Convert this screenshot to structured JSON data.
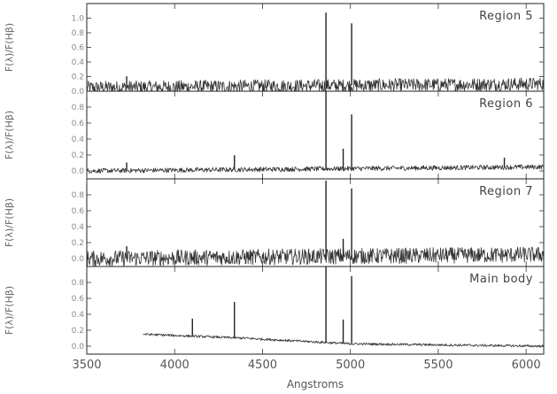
{
  "chart_data": {
    "type": "line",
    "xlabel": "Angstroms",
    "x_range": [
      3500,
      6100
    ],
    "x_ticks": [
      3500,
      4000,
      4500,
      5000,
      5500,
      6000
    ],
    "x_tick_labels": [
      "3500",
      "4000",
      "4500",
      "5000",
      "5500",
      "6000"
    ],
    "grid": false,
    "panels": [
      {
        "title": "Region 5",
        "ylabel": "F(λ)/F(Hβ)",
        "ylim": [
          0,
          1.2
        ],
        "y_ticks": [
          0.0,
          0.2,
          0.4,
          0.6,
          0.8,
          1.0
        ],
        "x_start": 3500,
        "x_end": 6100,
        "continuum": [
          [
            3500,
            0.05
          ],
          [
            6100,
            0.1
          ]
        ],
        "noise": 0.09,
        "lines": [
          [
            3727,
            0.15
          ],
          [
            4861,
            1.0
          ],
          [
            5007,
            0.85
          ]
        ]
      },
      {
        "title": "Region 6",
        "ylabel": "F(λ)/F(Hβ)",
        "ylim": [
          -0.1,
          1.0
        ],
        "y_ticks": [
          0.0,
          0.2,
          0.4,
          0.6,
          0.8
        ],
        "x_start": 3500,
        "x_end": 6100,
        "continuum": [
          [
            3500,
            0.0
          ],
          [
            6100,
            0.05
          ]
        ],
        "noise": 0.03,
        "lines": [
          [
            3727,
            0.1
          ],
          [
            4340,
            0.18
          ],
          [
            4861,
            1.0
          ],
          [
            4959,
            0.25
          ],
          [
            5007,
            0.68
          ],
          [
            5876,
            0.12
          ]
        ]
      },
      {
        "title": "Region 7",
        "ylabel": "F(λ)/F(Hβ)",
        "ylim": [
          -0.1,
          1.0
        ],
        "y_ticks": [
          0.0,
          0.2,
          0.4,
          0.6,
          0.8
        ],
        "x_start": 3500,
        "x_end": 6100,
        "continuum": [
          [
            3500,
            0.0
          ],
          [
            6100,
            0.05
          ]
        ],
        "noise": 0.1,
        "lines": [
          [
            3727,
            0.15
          ],
          [
            4861,
            0.95
          ],
          [
            4959,
            0.22
          ],
          [
            5007,
            0.85
          ]
        ]
      },
      {
        "title": "Main body",
        "ylabel": "F(λ)/F(Hβ)",
        "ylim": [
          -0.1,
          1.0
        ],
        "y_ticks": [
          0.0,
          0.2,
          0.4,
          0.6,
          0.8
        ],
        "x_start": 3820,
        "x_end": 6100,
        "continuum": [
          [
            3820,
            0.15
          ],
          [
            4400,
            0.1
          ],
          [
            5000,
            0.03
          ],
          [
            6100,
            0.0
          ]
        ],
        "noise": 0.015,
        "lines": [
          [
            4101,
            0.22
          ],
          [
            4340,
            0.45
          ],
          [
            4861,
            1.0
          ],
          [
            4959,
            0.3
          ],
          [
            5007,
            0.85
          ]
        ]
      }
    ]
  }
}
